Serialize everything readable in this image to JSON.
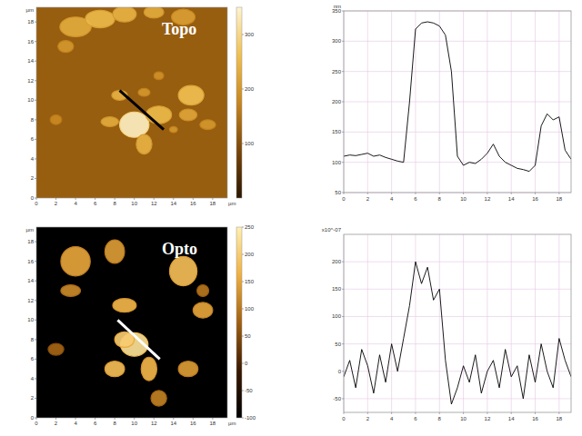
{
  "chart_data": [
    {
      "type": "image",
      "title": "Topo",
      "xlabel": "µm",
      "ylabel": "µm",
      "xlim": [
        0,
        19.5
      ],
      "ylim": [
        0,
        19.5
      ],
      "xticks": [
        0,
        2,
        4,
        6,
        8,
        10,
        12,
        14,
        16,
        18
      ],
      "yticks": [
        0,
        2,
        4,
        6,
        8,
        10,
        12,
        14,
        16,
        18
      ],
      "background": 120,
      "blobs": {
        "x": [
          4,
          6.5,
          9,
          3,
          12,
          15,
          8.5,
          11,
          12.5,
          10,
          7.5,
          12.5,
          11,
          15.8,
          15.5,
          17.5,
          2,
          14
        ],
        "y": [
          17.5,
          18.3,
          18.8,
          15.5,
          19,
          18.5,
          10.5,
          10.8,
          12.5,
          7.5,
          7.8,
          8.5,
          5.5,
          10.5,
          8.5,
          7.5,
          8,
          7
        ],
        "rx": [
          1.6,
          1.5,
          1.2,
          0.8,
          1.0,
          1.2,
          0.8,
          0.6,
          0.5,
          1.5,
          0.9,
          1.3,
          0.8,
          1.3,
          0.9,
          0.8,
          0.6,
          0.4
        ],
        "ry": [
          1.0,
          0.9,
          0.8,
          0.6,
          0.6,
          0.8,
          0.5,
          0.4,
          0.4,
          1.3,
          0.5,
          0.9,
          1.0,
          1.0,
          0.6,
          0.5,
          0.5,
          0.3
        ],
        "values": [
          230,
          250,
          240,
          200,
          230,
          210,
          240,
          200,
          190,
          340,
          230,
          250,
          240,
          260,
          220,
          200,
          180,
          200
        ]
      },
      "profile_line": {
        "x": [
          8.5,
          13
        ],
        "y": [
          11,
          7
        ]
      },
      "color": "#000000",
      "colorbar": {
        "range": [
          0,
          350
        ],
        "ticks": [
          100,
          200,
          300
        ]
      }
    },
    {
      "type": "line",
      "ylabel": "nm",
      "grid": true,
      "color": "#000000",
      "xlim": [
        0,
        19
      ],
      "ylim": [
        50,
        350
      ],
      "xticks": [
        0,
        2,
        4,
        6,
        8,
        10,
        12,
        14,
        16,
        18
      ],
      "yticks": [
        50,
        100,
        150,
        200,
        250,
        300,
        350
      ],
      "x": [
        0,
        0.5,
        1,
        1.5,
        2,
        2.5,
        3,
        3.5,
        4,
        4.5,
        5,
        5.5,
        6,
        6.5,
        7,
        7.5,
        8,
        8.5,
        9,
        9.5,
        10,
        10.5,
        11,
        11.5,
        12,
        12.5,
        13,
        13.5,
        14,
        14.5,
        15,
        15.5,
        16,
        16.5,
        17,
        17.5,
        18,
        18.5,
        19
      ],
      "values": [
        110,
        112,
        111,
        113,
        115,
        110,
        112,
        108,
        105,
        102,
        100,
        200,
        320,
        330,
        332,
        330,
        325,
        310,
        250,
        110,
        95,
        100,
        98,
        105,
        115,
        130,
        110,
        100,
        95,
        90,
        88,
        85,
        95,
        160,
        180,
        170,
        175,
        120,
        105
      ]
    },
    {
      "type": "image",
      "title": "Opto",
      "xlabel": "µm",
      "ylabel": "µm",
      "xlim": [
        0,
        19.5
      ],
      "ylim": [
        0,
        19.5
      ],
      "xticks": [
        0,
        2,
        4,
        6,
        8,
        10,
        12,
        14,
        16,
        18
      ],
      "yticks": [
        0,
        2,
        4,
        6,
        8,
        10,
        12,
        14,
        16,
        18
      ],
      "background": -100,
      "blobs": {
        "x": [
          4,
          3.5,
          8,
          15,
          17,
          9,
          10,
          9,
          8,
          11.5,
          15.5,
          12.5,
          2,
          17
        ],
        "y": [
          16,
          13,
          17,
          15,
          11,
          11.5,
          7.5,
          8,
          5,
          5,
          5,
          2,
          7,
          13
        ],
        "rx": [
          1.5,
          1.0,
          1.0,
          1.4,
          1.0,
          1.2,
          1.4,
          1.0,
          1.0,
          0.8,
          1.0,
          0.8,
          0.8,
          0.6
        ],
        "ry": [
          1.5,
          0.6,
          1.2,
          1.5,
          0.8,
          0.7,
          1.2,
          0.8,
          0.8,
          1.2,
          0.8,
          0.8,
          0.6,
          0.6
        ],
        "values": [
          150,
          120,
          140,
          180,
          150,
          170,
          230,
          200,
          180,
          170,
          140,
          110,
          80,
          100
        ]
      },
      "profile_line": {
        "x": [
          8.3,
          12.6
        ],
        "y": [
          10,
          6
        ]
      },
      "color": "#ffffff",
      "colorbar": {
        "range": [
          -100,
          250
        ],
        "ticks": [
          -100,
          -50,
          0,
          50,
          100,
          150,
          200,
          250
        ]
      }
    },
    {
      "type": "line",
      "ylabel": "x10^-07",
      "grid": true,
      "color": "#000000",
      "xlim": [
        0,
        19
      ],
      "ylim": [
        -75,
        250
      ],
      "xticks": [
        0,
        2,
        4,
        6,
        8,
        10,
        12,
        14,
        16,
        18
      ],
      "yticks": [
        -50,
        0,
        50,
        100,
        150,
        200
      ],
      "x": [
        0,
        0.5,
        1,
        1.5,
        2,
        2.5,
        3,
        3.5,
        4,
        4.5,
        5,
        5.5,
        6,
        6.5,
        7,
        7.5,
        8,
        8.5,
        9,
        9.5,
        10,
        10.5,
        11,
        11.5,
        12,
        12.5,
        13,
        13.5,
        14,
        14.5,
        15,
        15.5,
        16,
        16.5,
        17,
        17.5,
        18,
        18.5,
        19
      ],
      "values": [
        -10,
        20,
        -30,
        40,
        10,
        -40,
        30,
        -20,
        50,
        0,
        60,
        120,
        200,
        160,
        190,
        130,
        150,
        20,
        -60,
        -30,
        10,
        -20,
        30,
        -40,
        0,
        20,
        -30,
        40,
        -10,
        10,
        -50,
        30,
        -20,
        50,
        0,
        -30,
        60,
        20,
        -10
      ]
    }
  ]
}
